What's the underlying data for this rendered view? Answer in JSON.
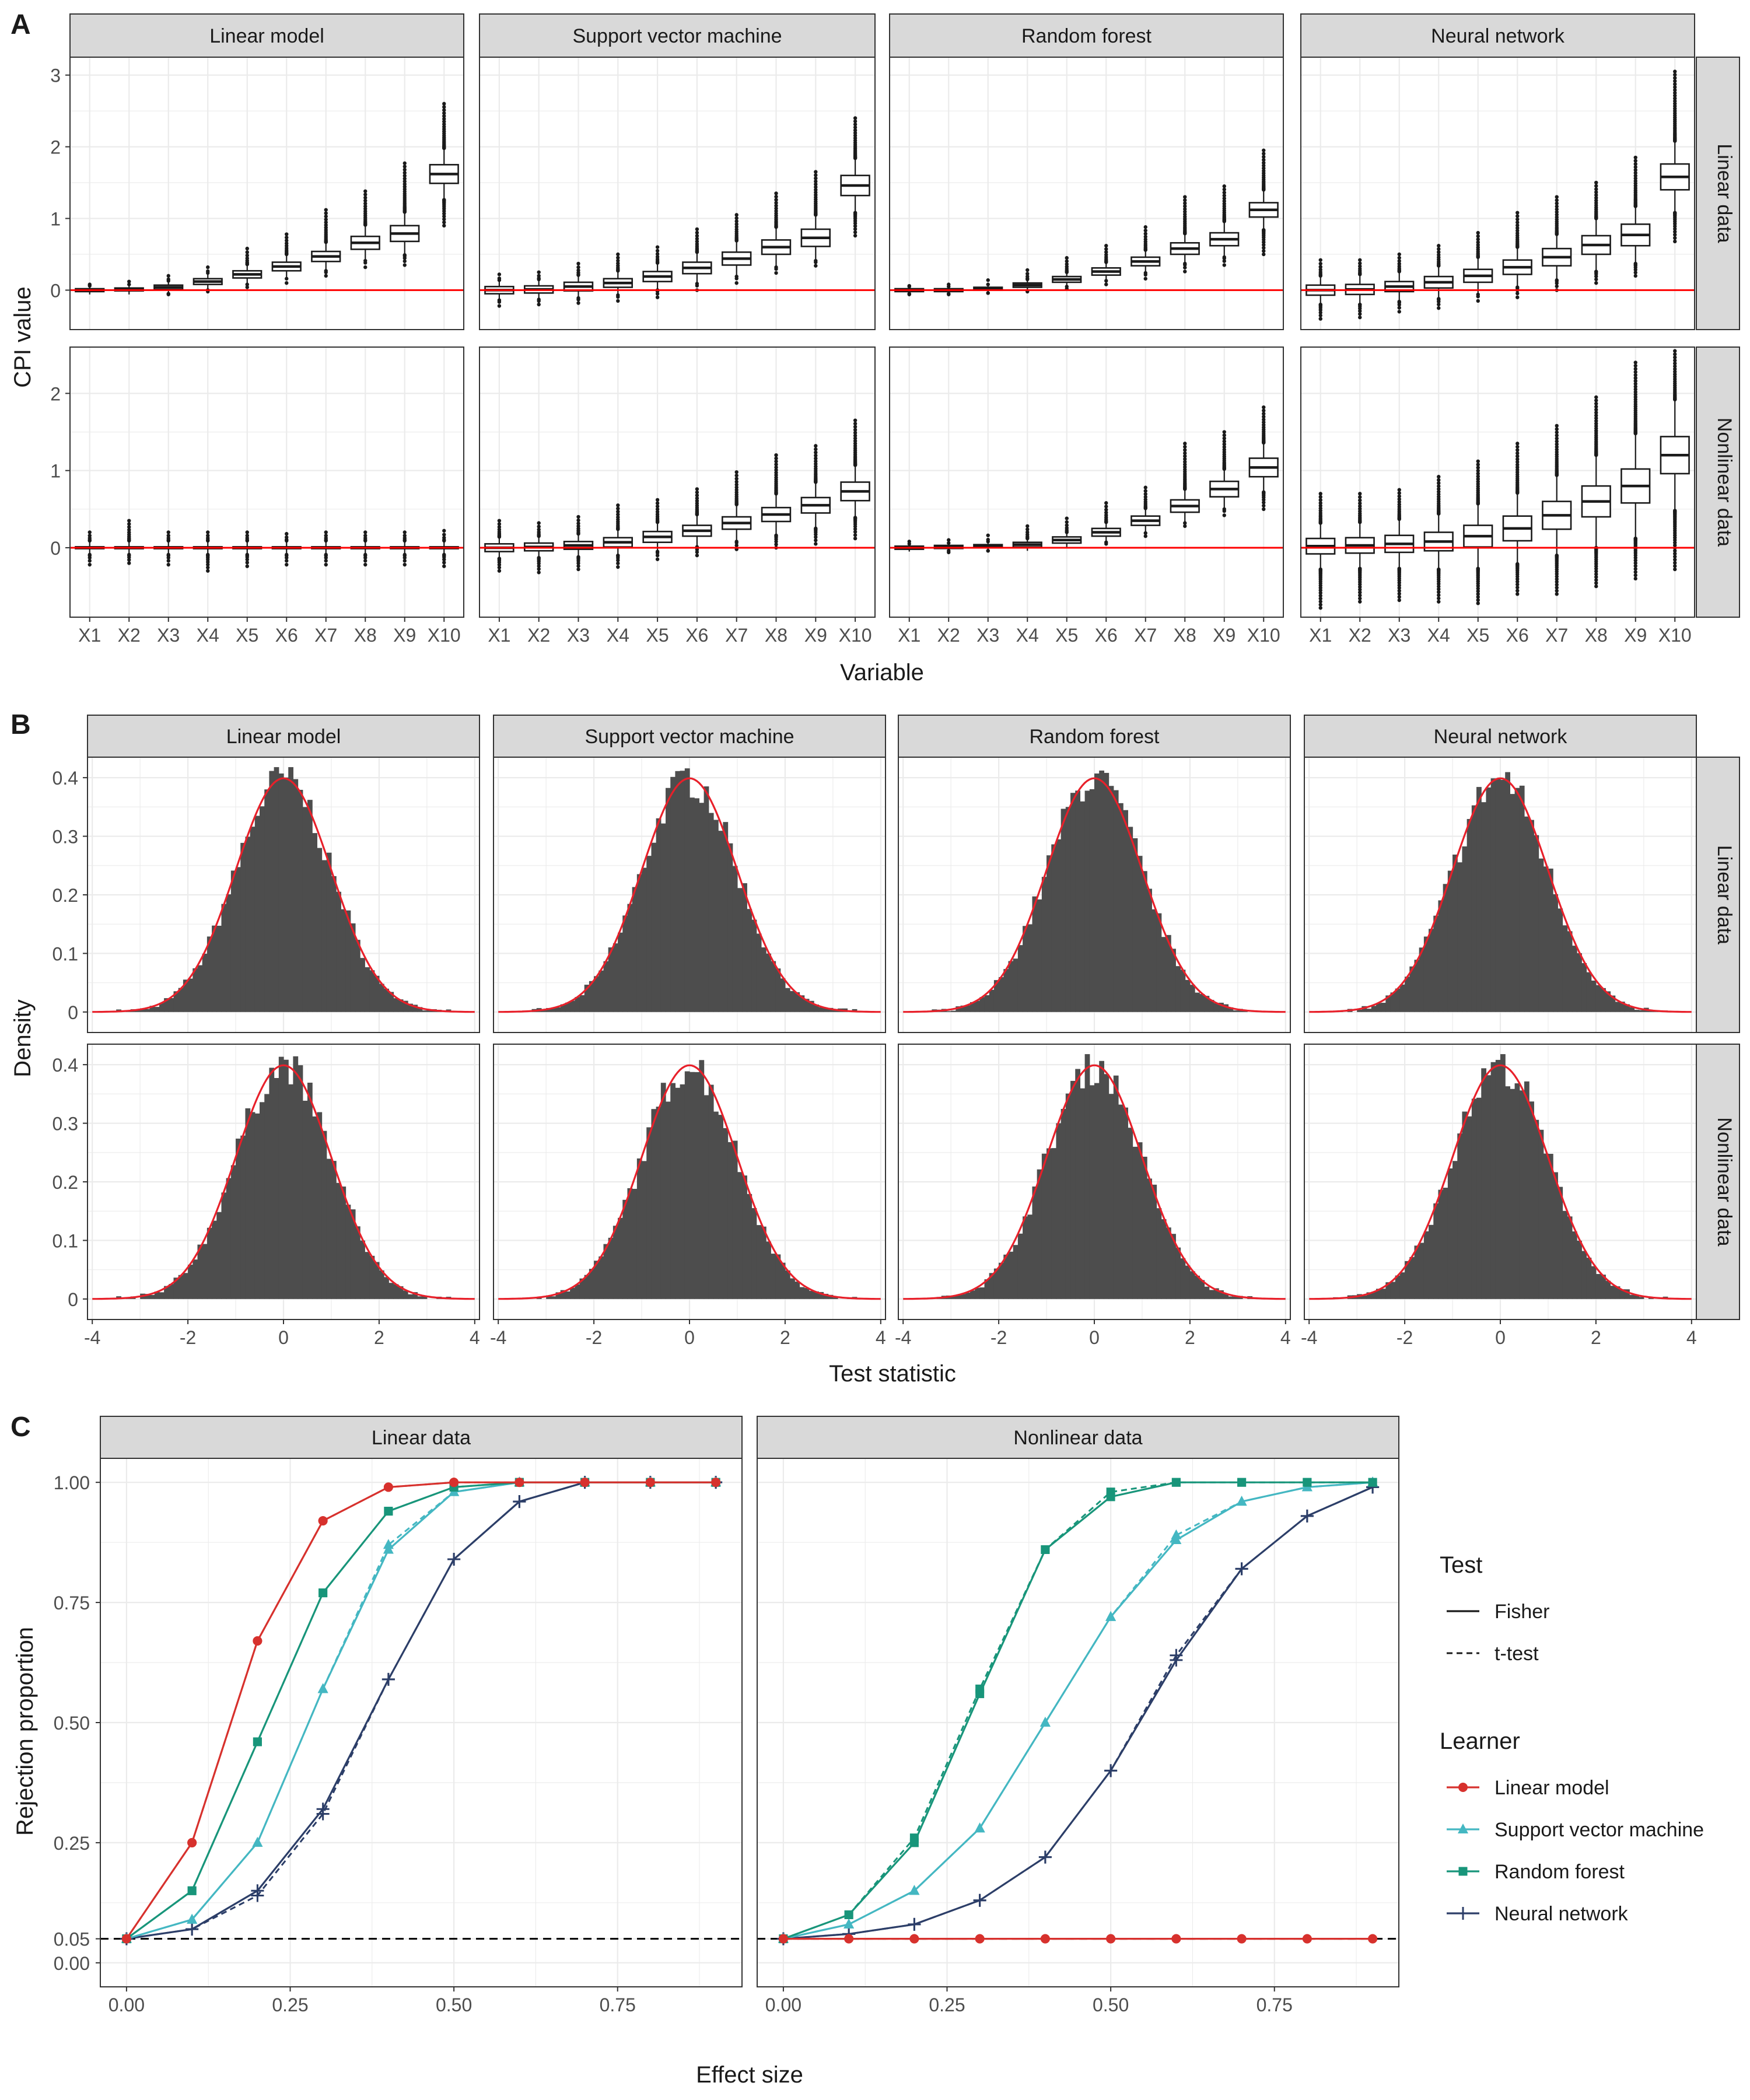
{
  "figure": {
    "panel_letters": [
      "A",
      "B",
      "C"
    ],
    "learners": [
      "Linear model",
      "Support vector machine",
      "Random forest",
      "Neural network"
    ],
    "data_types": [
      "Linear data",
      "Nonlinear data"
    ],
    "colors": {
      "strip_bg": "#d9d9d9",
      "strip_border": "#333333",
      "grid": "#ebebeb",
      "zero_line": "#ff0000",
      "hist_fill": "#4d4d4d",
      "normal_curve": "#e8202a",
      "ref_line": "#000000",
      "linear_model": "#d7312d",
      "support_vector_machine": "#44b7c2",
      "random_forest": "#18957a",
      "neural_network": "#2c3e68"
    }
  },
  "chart_data": [
    {
      "type": "box",
      "panel": "A",
      "facet_cols": [
        "Linear model",
        "Support vector machine",
        "Random forest",
        "Neural network"
      ],
      "facet_rows": [
        "Linear data",
        "Nonlinear data"
      ],
      "categories": [
        "X1",
        "X2",
        "X3",
        "X4",
        "X5",
        "X6",
        "X7",
        "X8",
        "X9",
        "X10"
      ],
      "xlabel": "Variable",
      "ylabel": "CPI value",
      "row_ylims": [
        [
          -0.55,
          3.25
        ],
        [
          -0.9,
          2.6
        ]
      ],
      "row_yticks": [
        [
          0,
          1,
          2,
          3
        ],
        [
          0,
          1,
          2
        ]
      ],
      "reference_line": 0,
      "series": [
        {
          "row": "Linear data",
          "col": "Linear model",
          "median": [
            0.0,
            0.01,
            0.04,
            0.12,
            0.22,
            0.33,
            0.47,
            0.66,
            0.79,
            1.62
          ],
          "iqr_half": [
            0.02,
            0.02,
            0.03,
            0.04,
            0.05,
            0.06,
            0.07,
            0.09,
            0.11,
            0.13
          ],
          "whisker": [
            0.06,
            0.07,
            0.09,
            0.12,
            0.14,
            0.17,
            0.2,
            0.25,
            0.3,
            0.36
          ],
          "max": [
            0.08,
            0.12,
            0.2,
            0.32,
            0.58,
            0.78,
            1.12,
            1.38,
            1.77,
            2.6
          ],
          "min": [
            -0.06,
            -0.06,
            -0.06,
            -0.02,
            0.04,
            0.1,
            0.2,
            0.32,
            0.35,
            0.9
          ]
        },
        {
          "row": "Linear data",
          "col": "Support vector machine",
          "median": [
            0.0,
            0.01,
            0.05,
            0.1,
            0.19,
            0.31,
            0.44,
            0.6,
            0.73,
            1.46
          ],
          "iqr_half": [
            0.05,
            0.05,
            0.06,
            0.06,
            0.07,
            0.08,
            0.09,
            0.1,
            0.12,
            0.14
          ],
          "whisker": [
            0.14,
            0.14,
            0.16,
            0.17,
            0.19,
            0.22,
            0.25,
            0.28,
            0.32,
            0.38
          ],
          "max": [
            0.22,
            0.25,
            0.37,
            0.5,
            0.6,
            0.85,
            1.05,
            1.35,
            1.65,
            2.4
          ],
          "min": [
            -0.22,
            -0.2,
            -0.18,
            -0.15,
            -0.1,
            0.0,
            0.1,
            0.24,
            0.34,
            0.76
          ]
        },
        {
          "row": "Linear data",
          "col": "Random forest",
          "median": [
            0.0,
            0.0,
            0.02,
            0.07,
            0.15,
            0.26,
            0.4,
            0.58,
            0.71,
            1.12
          ],
          "iqr_half": [
            0.02,
            0.02,
            0.02,
            0.03,
            0.04,
            0.05,
            0.06,
            0.08,
            0.09,
            0.1
          ],
          "whisker": [
            0.05,
            0.05,
            0.06,
            0.08,
            0.1,
            0.13,
            0.16,
            0.21,
            0.25,
            0.28
          ],
          "max": [
            0.06,
            0.08,
            0.14,
            0.28,
            0.45,
            0.62,
            0.88,
            1.3,
            1.45,
            1.95
          ],
          "min": [
            -0.06,
            -0.06,
            -0.04,
            -0.02,
            0.02,
            0.08,
            0.16,
            0.26,
            0.35,
            0.5
          ]
        },
        {
          "row": "Linear data",
          "col": "Neural network",
          "median": [
            0.0,
            0.01,
            0.05,
            0.11,
            0.2,
            0.32,
            0.46,
            0.63,
            0.77,
            1.58
          ],
          "iqr_half": [
            0.07,
            0.07,
            0.07,
            0.08,
            0.09,
            0.1,
            0.12,
            0.13,
            0.15,
            0.18
          ],
          "whisker": [
            0.2,
            0.21,
            0.21,
            0.23,
            0.26,
            0.28,
            0.32,
            0.37,
            0.4,
            0.5
          ],
          "max": [
            0.42,
            0.42,
            0.5,
            0.62,
            0.8,
            1.08,
            1.3,
            1.5,
            1.85,
            3.05
          ],
          "min": [
            -0.4,
            -0.38,
            -0.3,
            -0.25,
            -0.15,
            -0.1,
            0.0,
            0.1,
            0.2,
            0.68
          ]
        },
        {
          "row": "Nonlinear data",
          "col": "Linear model",
          "median": [
            0,
            0,
            0,
            0,
            0,
            0,
            0,
            0,
            0,
            0
          ],
          "iqr_half": [
            0.012,
            0.012,
            0.012,
            0.012,
            0.012,
            0.012,
            0.012,
            0.012,
            0.012,
            0.012
          ],
          "whisker": [
            0.09,
            0.09,
            0.09,
            0.09,
            0.09,
            0.09,
            0.09,
            0.09,
            0.09,
            0.09
          ],
          "max": [
            0.2,
            0.35,
            0.2,
            0.2,
            0.2,
            0.18,
            0.2,
            0.2,
            0.2,
            0.22
          ],
          "min": [
            -0.22,
            -0.2,
            -0.22,
            -0.3,
            -0.24,
            -0.22,
            -0.22,
            -0.22,
            -0.22,
            -0.24
          ]
        },
        {
          "row": "Nonlinear data",
          "col": "Support vector machine",
          "median": [
            0.0,
            0.01,
            0.03,
            0.07,
            0.14,
            0.22,
            0.32,
            0.43,
            0.55,
            0.73
          ],
          "iqr_half": [
            0.05,
            0.05,
            0.05,
            0.06,
            0.07,
            0.07,
            0.08,
            0.09,
            0.1,
            0.12
          ],
          "whisker": [
            0.14,
            0.14,
            0.15,
            0.17,
            0.19,
            0.21,
            0.24,
            0.27,
            0.3,
            0.34
          ],
          "max": [
            0.35,
            0.32,
            0.4,
            0.55,
            0.62,
            0.76,
            0.98,
            1.2,
            1.32,
            1.65
          ],
          "min": [
            -0.3,
            -0.32,
            -0.28,
            -0.25,
            -0.15,
            -0.1,
            -0.02,
            0.0,
            0.05,
            0.12
          ]
        },
        {
          "row": "Nonlinear data",
          "col": "Random forest",
          "median": [
            0.0,
            0.01,
            0.02,
            0.04,
            0.1,
            0.2,
            0.35,
            0.54,
            0.76,
            1.04
          ],
          "iqr_half": [
            0.02,
            0.02,
            0.02,
            0.03,
            0.04,
            0.05,
            0.06,
            0.08,
            0.1,
            0.12
          ],
          "whisker": [
            0.05,
            0.05,
            0.06,
            0.08,
            0.1,
            0.13,
            0.16,
            0.22,
            0.26,
            0.32
          ],
          "max": [
            0.08,
            0.1,
            0.16,
            0.28,
            0.38,
            0.58,
            0.78,
            1.35,
            1.5,
            1.82
          ],
          "min": [
            -0.05,
            -0.06,
            -0.04,
            -0.02,
            0.0,
            0.05,
            0.15,
            0.28,
            0.42,
            0.5
          ]
        },
        {
          "row": "Nonlinear data",
          "col": "Neural network",
          "median": [
            0.02,
            0.03,
            0.05,
            0.08,
            0.15,
            0.25,
            0.42,
            0.6,
            0.8,
            1.2
          ],
          "iqr_half": [
            0.1,
            0.1,
            0.11,
            0.12,
            0.14,
            0.16,
            0.18,
            0.2,
            0.22,
            0.24
          ],
          "whisker": [
            0.3,
            0.3,
            0.32,
            0.36,
            0.42,
            0.46,
            0.52,
            0.6,
            0.68,
            0.72
          ],
          "max": [
            0.7,
            0.7,
            0.75,
            0.92,
            1.12,
            1.35,
            1.58,
            1.95,
            2.4,
            2.55
          ],
          "min": [
            -0.78,
            -0.7,
            -0.68,
            -0.7,
            -0.72,
            -0.6,
            -0.6,
            -0.5,
            -0.4,
            -0.28
          ]
        }
      ]
    },
    {
      "type": "histogram",
      "panel": "B",
      "facet_cols": [
        "Linear model",
        "Support vector machine",
        "Random forest",
        "Neural network"
      ],
      "facet_rows": [
        "Linear data",
        "Nonlinear data"
      ],
      "xlabel": "Test statistic",
      "ylabel": "Density",
      "xlim": [
        -4.1,
        4.1
      ],
      "ylim": [
        -0.035,
        0.435
      ],
      "xticks": [
        -4,
        -2,
        0,
        2,
        4
      ],
      "yticks": [
        0.0,
        0.1,
        0.2,
        0.3,
        0.4
      ],
      "overlay": "standard normal density",
      "bin_width": 0.1,
      "bin_range": [
        -3.5,
        3.5
      ],
      "peak_density": 0.41
    },
    {
      "type": "line",
      "panel": "C",
      "facets": [
        "Linear data",
        "Nonlinear data"
      ],
      "xlabel": "Effect size",
      "ylabel": "Rejection proportion",
      "x": [
        0.0,
        0.1,
        0.2,
        0.3,
        0.4,
        0.5,
        0.6,
        0.7,
        0.8,
        0.9
      ],
      "xlim": [
        -0.04,
        0.94
      ],
      "ylim": [
        -0.05,
        1.05
      ],
      "xticks": [
        "0.00",
        "0.25",
        "0.50",
        "0.75"
      ],
      "yticks": [
        "0.00",
        "0.05",
        "0.25",
        "0.50",
        "0.75",
        "1.00"
      ],
      "reference_line": 0.05,
      "legend": {
        "test_title": "Test",
        "test_items": [
          "Fisher",
          "t-test"
        ],
        "learner_title": "Learner",
        "learner_items": [
          "Linear model",
          "Support vector machine",
          "Random forest",
          "Neural network"
        ],
        "placement": "right"
      },
      "series": [
        {
          "facet": "Linear data",
          "learner": "Linear model",
          "fisher": [
            0.05,
            0.25,
            0.67,
            0.92,
            0.99,
            1.0,
            1.0,
            1.0,
            1.0,
            1.0
          ],
          "ttest": [
            0.05,
            0.25,
            0.67,
            0.92,
            0.99,
            1.0,
            1.0,
            1.0,
            1.0,
            1.0
          ]
        },
        {
          "facet": "Linear data",
          "learner": "Support vector machine",
          "fisher": [
            0.05,
            0.09,
            0.25,
            0.57,
            0.86,
            0.98,
            1.0,
            1.0,
            1.0,
            1.0
          ],
          "ttest": [
            0.05,
            0.09,
            0.25,
            0.57,
            0.87,
            0.98,
            1.0,
            1.0,
            1.0,
            1.0
          ]
        },
        {
          "facet": "Linear data",
          "learner": "Random forest",
          "fisher": [
            0.05,
            0.15,
            0.46,
            0.77,
            0.94,
            0.99,
            1.0,
            1.0,
            1.0,
            1.0
          ],
          "ttest": [
            0.05,
            0.15,
            0.46,
            0.77,
            0.94,
            0.99,
            1.0,
            1.0,
            1.0,
            1.0
          ]
        },
        {
          "facet": "Linear data",
          "learner": "Neural network",
          "fisher": [
            0.05,
            0.07,
            0.15,
            0.32,
            0.59,
            0.84,
            0.96,
            1.0,
            1.0,
            1.0
          ],
          "ttest": [
            0.05,
            0.07,
            0.14,
            0.31,
            0.59,
            0.84,
            0.96,
            1.0,
            1.0,
            1.0
          ]
        },
        {
          "facet": "Nonlinear data",
          "learner": "Linear model",
          "fisher": [
            0.05,
            0.05,
            0.05,
            0.05,
            0.05,
            0.05,
            0.05,
            0.05,
            0.05,
            0.05
          ],
          "ttest": [
            0.05,
            0.05,
            0.05,
            0.05,
            0.05,
            0.05,
            0.05,
            0.05,
            0.05,
            0.05
          ]
        },
        {
          "facet": "Nonlinear data",
          "learner": "Support vector machine",
          "fisher": [
            0.05,
            0.08,
            0.15,
            0.28,
            0.5,
            0.72,
            0.88,
            0.96,
            0.99,
            1.0
          ],
          "ttest": [
            0.05,
            0.08,
            0.15,
            0.28,
            0.5,
            0.72,
            0.89,
            0.96,
            0.99,
            1.0
          ]
        },
        {
          "facet": "Nonlinear data",
          "learner": "Random forest",
          "fisher": [
            0.05,
            0.1,
            0.25,
            0.56,
            0.86,
            0.97,
            1.0,
            1.0,
            1.0,
            1.0
          ],
          "ttest": [
            0.05,
            0.1,
            0.26,
            0.57,
            0.86,
            0.98,
            1.0,
            1.0,
            1.0,
            1.0
          ]
        },
        {
          "facet": "Nonlinear data",
          "learner": "Neural network",
          "fisher": [
            0.05,
            0.06,
            0.08,
            0.13,
            0.22,
            0.4,
            0.63,
            0.82,
            0.93,
            0.99
          ],
          "ttest": [
            0.05,
            0.06,
            0.08,
            0.13,
            0.22,
            0.4,
            0.64,
            0.82,
            0.93,
            0.99
          ]
        }
      ]
    }
  ]
}
